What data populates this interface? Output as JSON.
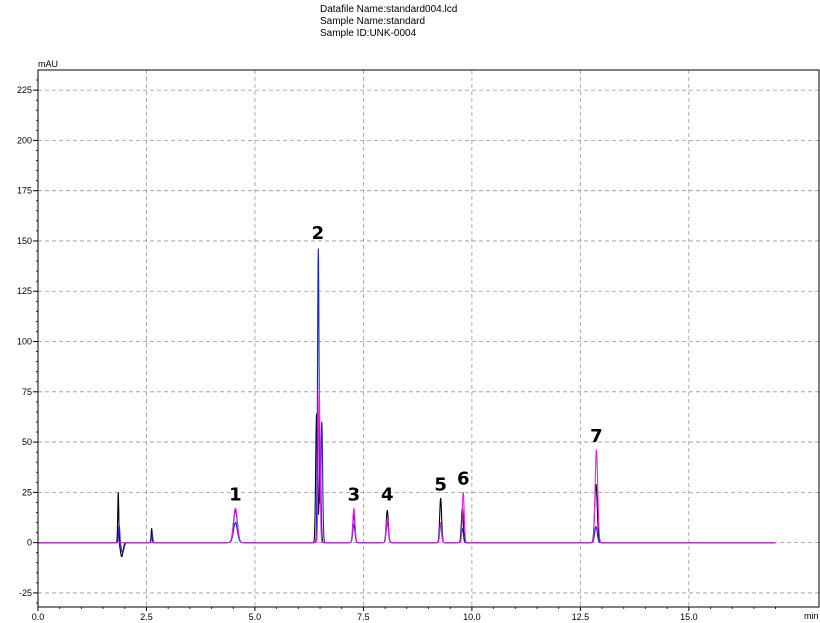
{
  "header": {
    "lines": [
      "Datafile Name:standard004.lcd",
      "Sample Name:standard",
      "Sample ID:UNK-0004"
    ]
  },
  "chart_data": {
    "type": "line",
    "ylabel": "mAU",
    "xlabel": "min",
    "xlim": [
      0,
      18
    ],
    "ylim": [
      -32,
      235
    ],
    "xticks": [
      0.0,
      2.5,
      5.0,
      7.5,
      10.0,
      12.5,
      15.0
    ],
    "xtick_labels": [
      "0.0",
      "2.5",
      "5.0",
      "7.5",
      "10.0",
      "12.5",
      "15.0"
    ],
    "yticks": [
      -25,
      0,
      25,
      50,
      75,
      100,
      125,
      150,
      175,
      200,
      225
    ],
    "ytick_labels": [
      "-25",
      "0",
      "25",
      "50",
      "75",
      "100",
      "125",
      "150",
      "175",
      "200",
      "225"
    ],
    "grid": true,
    "colors": {
      "black": "#000000",
      "blue": "#1f1fd6",
      "magenta": "#e81ee8",
      "grid": "#9a9a9a"
    },
    "series": [
      {
        "color": "#000000",
        "peaks": [
          {
            "t": 1.85,
            "h": 25,
            "w": 0.012
          },
          {
            "t": 1.93,
            "h": -7,
            "w": 0.03
          },
          {
            "t": 2.62,
            "h": 7,
            "w": 0.012
          },
          {
            "t": 4.55,
            "h": 16,
            "w": 0.045
          },
          {
            "t": 6.42,
            "h": 64,
            "w": 0.02
          },
          {
            "t": 6.5,
            "h": 42,
            "w": 0.02
          },
          {
            "t": 7.28,
            "h": 14,
            "w": 0.025
          },
          {
            "t": 8.05,
            "h": 16,
            "w": 0.025
          },
          {
            "t": 9.28,
            "h": 22,
            "w": 0.022
          },
          {
            "t": 9.78,
            "h": 17,
            "w": 0.022
          },
          {
            "t": 12.86,
            "h": 29,
            "w": 0.03
          }
        ]
      },
      {
        "color": "#1f1fd6",
        "peaks": [
          {
            "t": 1.87,
            "h": 9,
            "w": 0.015
          },
          {
            "t": 1.95,
            "h": -5,
            "w": 0.03
          },
          {
            "t": 2.63,
            "h": 4,
            "w": 0.015
          },
          {
            "t": 4.55,
            "h": 10,
            "w": 0.045
          },
          {
            "t": 6.46,
            "h": 146,
            "w": 0.018
          },
          {
            "t": 6.54,
            "h": 60,
            "w": 0.02
          },
          {
            "t": 7.28,
            "h": 9,
            "w": 0.025
          },
          {
            "t": 8.05,
            "h": 10,
            "w": 0.025
          },
          {
            "t": 9.28,
            "h": 9,
            "w": 0.022
          },
          {
            "t": 9.78,
            "h": 7,
            "w": 0.022
          },
          {
            "t": 12.86,
            "h": 8,
            "w": 0.03
          }
        ]
      },
      {
        "color": "#e81ee8",
        "peaks": [
          {
            "t": 4.55,
            "h": 17,
            "w": 0.045
          },
          {
            "t": 6.48,
            "h": 76,
            "w": 0.02
          },
          {
            "t": 7.28,
            "h": 17,
            "w": 0.025
          },
          {
            "t": 8.05,
            "h": 12,
            "w": 0.025
          },
          {
            "t": 9.28,
            "h": 10,
            "w": 0.022
          },
          {
            "t": 9.8,
            "h": 25,
            "w": 0.022
          },
          {
            "t": 12.87,
            "h": 46,
            "w": 0.03
          }
        ]
      }
    ],
    "annotations": [
      {
        "text": "1",
        "x": 4.55,
        "y": 17
      },
      {
        "text": "2",
        "x": 6.45,
        "y": 147
      },
      {
        "text": "3",
        "x": 7.28,
        "y": 17
      },
      {
        "text": "4",
        "x": 8.05,
        "y": 17
      },
      {
        "text": "5",
        "x": 9.28,
        "y": 22
      },
      {
        "text": "6",
        "x": 9.8,
        "y": 25
      },
      {
        "text": "7",
        "x": 12.87,
        "y": 46
      }
    ]
  }
}
